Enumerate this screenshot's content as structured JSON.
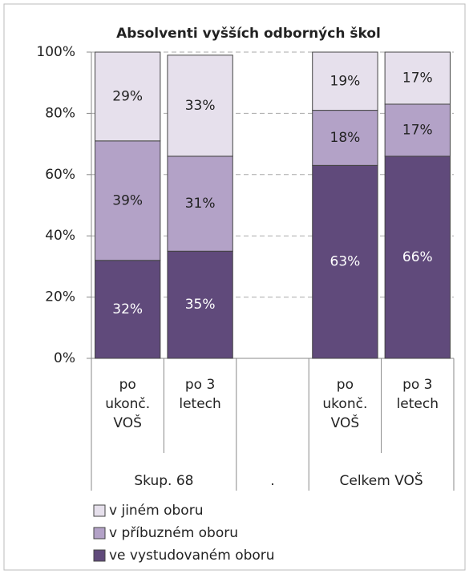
{
  "chart_data": {
    "type": "stacked_bar",
    "title": "Absolventi vyšších odborných škol",
    "categories": [
      "po ukonč. VOŠ",
      "po 3 letech",
      null,
      "po ukonč. VOŠ",
      "po 3 letech"
    ],
    "groups": [
      "Skup. 68",
      ".",
      "Celkem VOŠ"
    ],
    "series": [
      {
        "name": "ve vystudovaném oboru",
        "color": "#604a7b",
        "values": [
          32,
          35,
          null,
          63,
          66
        ],
        "value_labels": [
          "32%",
          "35%",
          null,
          "63%",
          "66%"
        ]
      },
      {
        "name": "v příbuzném oboru",
        "color": "#b3a2c7",
        "values": [
          39,
          31,
          null,
          18,
          17
        ],
        "value_labels": [
          "39%",
          "31%",
          null,
          "18%",
          "17%"
        ]
      },
      {
        "name": "v jiném oboru",
        "color": "#e6e0ec",
        "values": [
          29,
          33,
          null,
          19,
          17
        ],
        "value_labels": [
          "29%",
          "33%",
          null,
          "19%",
          "17%"
        ]
      }
    ],
    "ylim": [
      0,
      100
    ],
    "yticks": [
      {
        "value": 0,
        "label": "0%"
      },
      {
        "value": 20,
        "label": "20%"
      },
      {
        "value": 40,
        "label": "40%"
      },
      {
        "value": 60,
        "label": "60%"
      },
      {
        "value": 80,
        "label": "80%"
      },
      {
        "value": 100,
        "label": "100%"
      }
    ],
    "grid": true
  }
}
